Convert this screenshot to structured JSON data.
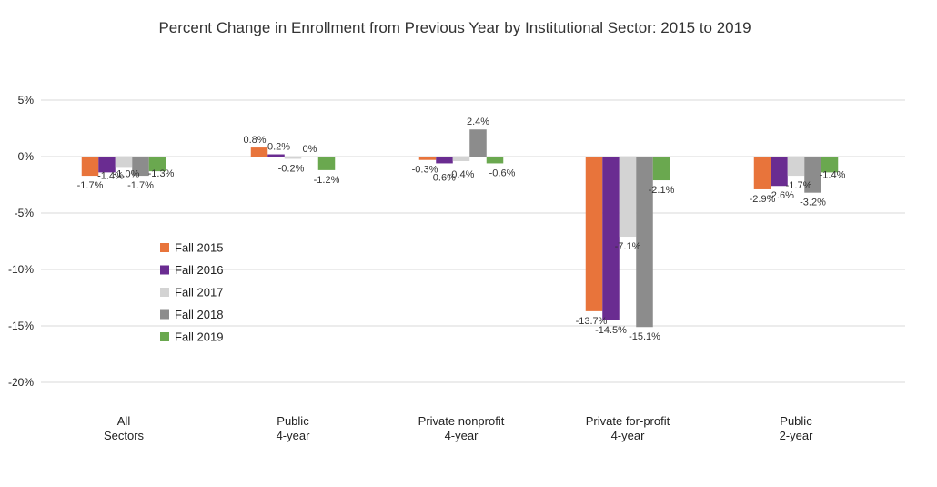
{
  "chart_data": {
    "type": "bar",
    "title": "Percent Change in Enrollment from Previous Year by Institutional Sector: 2015 to 2019",
    "xlabel": "",
    "ylabel": "",
    "ylim": [
      -20,
      5
    ],
    "yticks": [
      5,
      0,
      -5,
      -10,
      -15,
      -20
    ],
    "ytick_labels": [
      "5%",
      "0%",
      "-5%",
      "-10%",
      "-15%",
      "-20%"
    ],
    "grid": true,
    "legend_position": "left-middle",
    "categories": [
      [
        "All",
        "Sectors"
      ],
      [
        "Public",
        "4-year"
      ],
      [
        "Private nonprofit",
        "4-year"
      ],
      [
        "Private for-profit",
        "4-year"
      ],
      [
        "Public",
        "2-year"
      ]
    ],
    "series": [
      {
        "name": "Fall 2015",
        "color": "#e8743b",
        "values": [
          -1.7,
          0.8,
          -0.3,
          -13.7,
          -2.9
        ],
        "labels": [
          "-1.7%",
          "0.8%",
          "-0.3%",
          "-13.7%",
          "-2.9%"
        ]
      },
      {
        "name": "Fall 2016",
        "color": "#6a2c91",
        "values": [
          -1.4,
          0.2,
          -0.6,
          -14.5,
          -2.6
        ],
        "labels": [
          "-1.4%",
          "0.2%",
          "-0.6%",
          "-14.5%",
          "-2.6%"
        ]
      },
      {
        "name": "Fall 2017",
        "color": "#d3d3d3",
        "values": [
          -1.0,
          -0.2,
          -0.4,
          -7.1,
          -1.7
        ],
        "labels": [
          "-1.0%",
          "-0.2%",
          "-0.4%",
          "-7.1%",
          "-1.7%"
        ]
      },
      {
        "name": "Fall 2018",
        "color": "#8c8c8c",
        "values": [
          -1.7,
          0,
          2.4,
          -15.1,
          -3.2
        ],
        "labels": [
          "-1.7%",
          "0%",
          "2.4%",
          "-15.1%",
          "-3.2%"
        ]
      },
      {
        "name": "Fall 2019",
        "color": "#6aa84f",
        "values": [
          -1.3,
          -1.2,
          -0.6,
          -2.1,
          -1.4
        ],
        "labels": [
          "-1.3%",
          "-1.2%",
          "-0.6%",
          "-2.1%",
          "-1.4%"
        ]
      }
    ]
  }
}
